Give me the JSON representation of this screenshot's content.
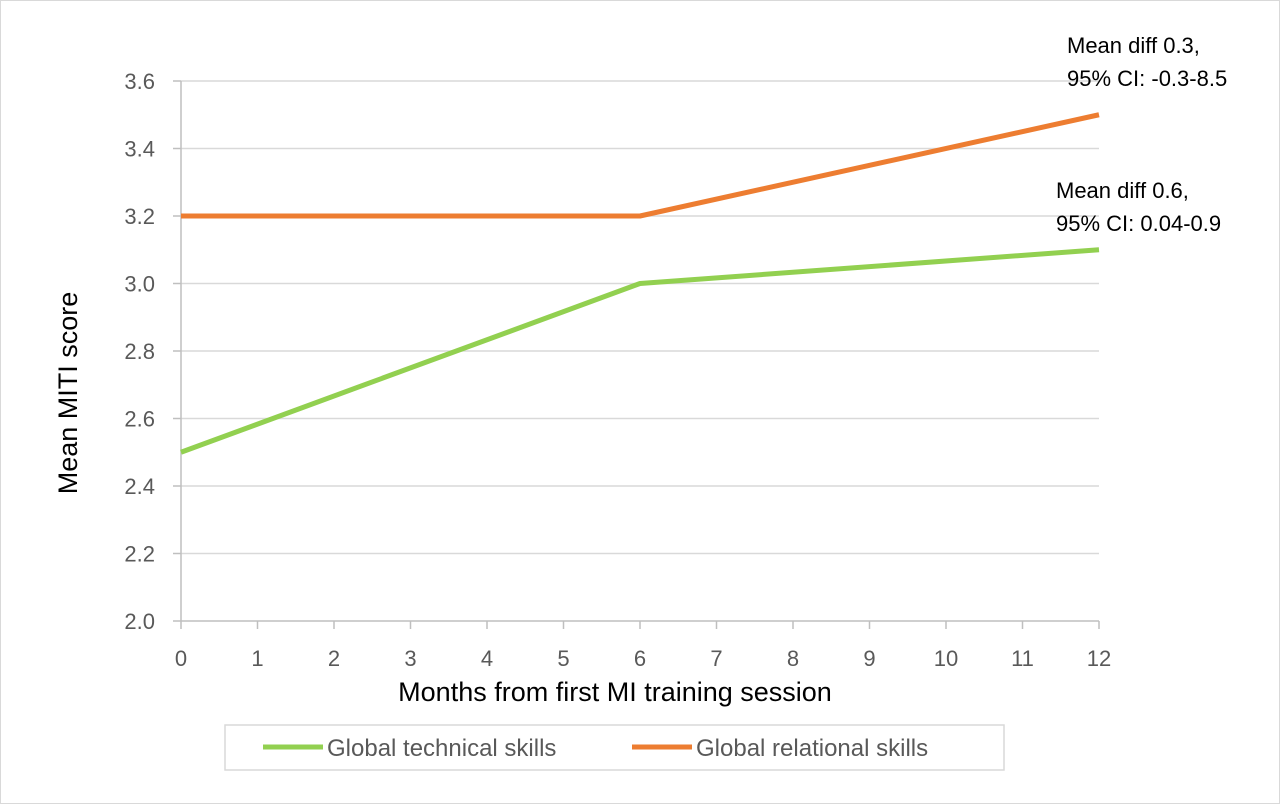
{
  "chart_data": {
    "type": "line",
    "title": "",
    "xlabel": "Months from first MI training session",
    "ylabel": "Mean MITI score",
    "xlim": [
      0,
      12
    ],
    "ylim": [
      2.0,
      3.6
    ],
    "x_ticks": [
      0,
      1,
      2,
      3,
      4,
      5,
      6,
      7,
      8,
      9,
      10,
      11,
      12
    ],
    "y_ticks": [
      "2.0",
      "2.2",
      "2.4",
      "2.6",
      "2.8",
      "3.0",
      "3.2",
      "3.4",
      "3.6"
    ],
    "grid": "horizontal",
    "legend_position": "bottom",
    "series": [
      {
        "name": "Global technical skills",
        "color": "#92d050",
        "x": [
          0,
          6,
          12
        ],
        "values": [
          2.5,
          3.0,
          3.1
        ]
      },
      {
        "name": "Global relational skills",
        "color": "#ed7d31",
        "x": [
          0,
          6,
          12
        ],
        "values": [
          3.2,
          3.2,
          3.5
        ]
      }
    ],
    "annotations": [
      {
        "series": "Global relational skills",
        "lines": [
          "Mean diff 0.3,",
          "95% CI: -0.3-8.5"
        ]
      },
      {
        "series": "Global technical skills",
        "lines": [
          "Mean diff 0.6,",
          "95% CI: 0.04-0.9"
        ]
      }
    ]
  }
}
